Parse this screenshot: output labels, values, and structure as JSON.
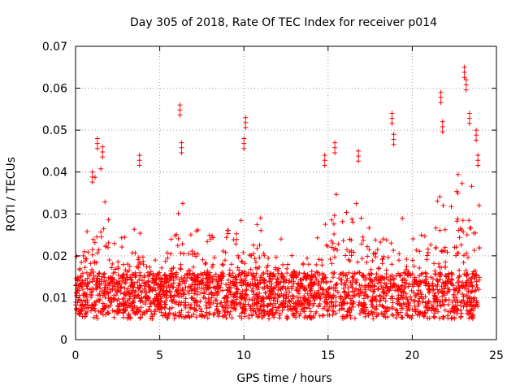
{
  "chart_data": {
    "type": "scatter",
    "title": "Day 305 of 2018, Rate Of TEC Index for receiver p014",
    "xlabel": "GPS time / hours",
    "ylabel": "ROTI / TECUs",
    "xlim": [
      0,
      25
    ],
    "ylim": [
      0,
      0.07
    ],
    "x_ticks": [
      0,
      5,
      10,
      15,
      20,
      25
    ],
    "x_tick_labels": [
      "0",
      "5",
      "10",
      "15",
      "20",
      "25"
    ],
    "y_ticks": [
      0,
      0.01,
      0.02,
      0.03,
      0.04,
      0.05,
      0.06,
      0.07
    ],
    "y_tick_labels": [
      "0",
      "0.01",
      "0.02",
      "0.03",
      "0.04",
      "0.05",
      "0.06",
      "0.07"
    ],
    "grid": true,
    "marker": "+",
    "color": "#ff0000",
    "series": [
      {
        "name": "ROTI",
        "description": "dense scatter of several thousand samples over 0-24 h; baseline ~0.004-0.02 TECU",
        "approx_range": [
          0.003,
          0.065
        ],
        "notable_peaks": [
          {
            "x": 1.3,
            "y": 0.048
          },
          {
            "x": 1.6,
            "y": 0.046
          },
          {
            "x": 1.0,
            "y": 0.04
          },
          {
            "x": 3.8,
            "y": 0.044
          },
          {
            "x": 6.2,
            "y": 0.056
          },
          {
            "x": 6.3,
            "y": 0.047
          },
          {
            "x": 10.1,
            "y": 0.053
          },
          {
            "x": 10.0,
            "y": 0.048
          },
          {
            "x": 15.4,
            "y": 0.047
          },
          {
            "x": 14.8,
            "y": 0.044
          },
          {
            "x": 16.8,
            "y": 0.045
          },
          {
            "x": 18.8,
            "y": 0.054
          },
          {
            "x": 18.9,
            "y": 0.049
          },
          {
            "x": 21.7,
            "y": 0.059
          },
          {
            "x": 21.8,
            "y": 0.052
          },
          {
            "x": 23.1,
            "y": 0.065
          },
          {
            "x": 23.2,
            "y": 0.062
          },
          {
            "x": 23.4,
            "y": 0.054
          },
          {
            "x": 23.8,
            "y": 0.05
          },
          {
            "x": 23.9,
            "y": 0.044
          }
        ]
      }
    ]
  }
}
